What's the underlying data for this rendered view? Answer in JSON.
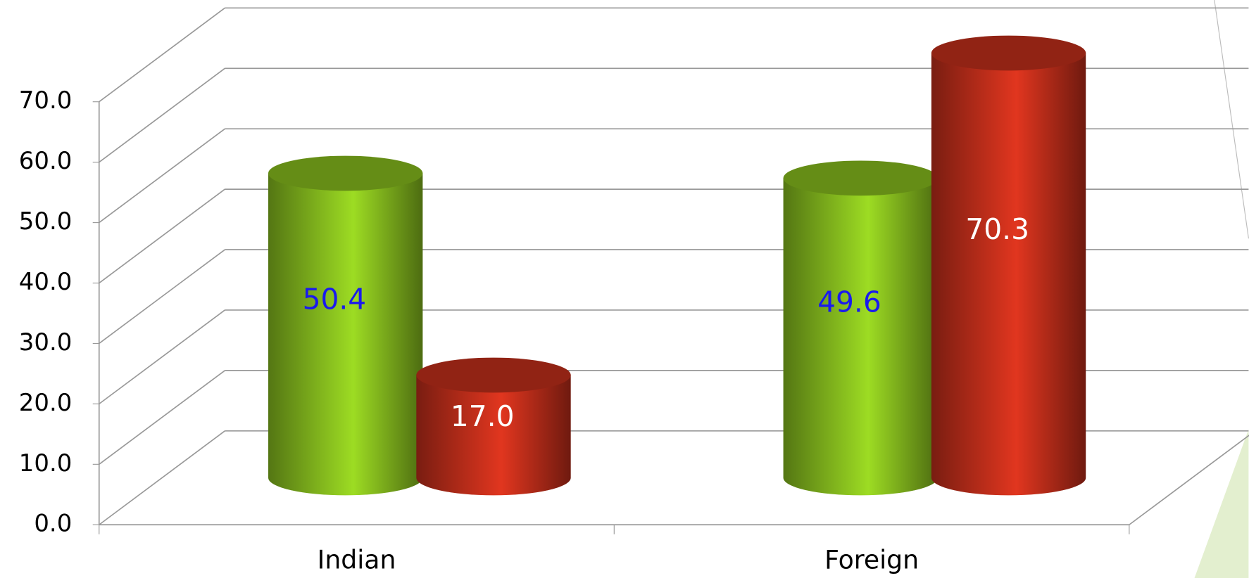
{
  "chart_data": {
    "type": "bar3d",
    "categories": [
      "Indian",
      "Foreign"
    ],
    "series": [
      {
        "color": "#8cc41f",
        "values": [
          50.4,
          49.6
        ],
        "value_labels": [
          "50.4",
          "49.6"
        ],
        "label_color": "#1a1aee"
      },
      {
        "color": "#c9301c",
        "values": [
          17.0,
          70.3
        ],
        "value_labels": [
          "17.0",
          "70.3"
        ],
        "label_color": "#ffffff"
      }
    ],
    "ylim": [
      0,
      70
    ],
    "yticks": [
      {
        "value": 0,
        "label": "0.0"
      },
      {
        "value": 10,
        "label": "10.0"
      },
      {
        "value": 20,
        "label": "20.0"
      },
      {
        "value": 30,
        "label": "30.0"
      },
      {
        "value": 40,
        "label": "40.0"
      },
      {
        "value": 50,
        "label": "50.0"
      },
      {
        "value": 60,
        "label": "60.0"
      },
      {
        "value": 70,
        "label": "70.0"
      }
    ],
    "grid": true
  }
}
